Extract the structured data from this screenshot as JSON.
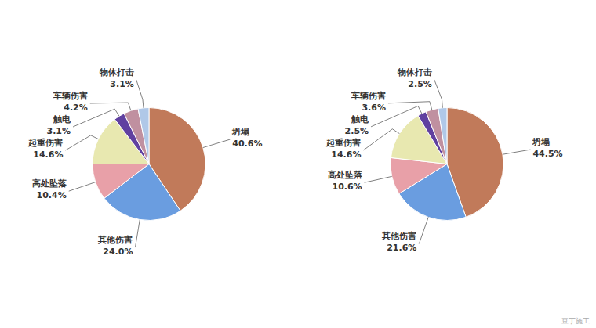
{
  "chart_data": [
    {
      "type": "pie",
      "categories": [
        "坍塌",
        "其他伤害",
        "高处坠落",
        "起重伤害",
        "触电",
        "车辆伤害",
        "物体打击"
      ],
      "values": [
        40.6,
        24.0,
        10.4,
        14.6,
        3.1,
        4.2,
        3.1
      ],
      "value_labels": [
        "40.6%",
        "24.0%",
        "10.4%",
        "14.6%",
        "3.1%",
        "4.2%",
        "3.1%"
      ],
      "colors": [
        "#c17a5a",
        "#6a9de0",
        "#e8a0a8",
        "#e8e8b0",
        "#6040a0",
        "#c090a0",
        "#b0c8e8"
      ],
      "data_labels": true
    },
    {
      "type": "pie",
      "categories": [
        "坍塌",
        "其他伤害",
        "高处坠落",
        "起重伤害",
        "触电",
        "车辆伤害",
        "物体打击"
      ],
      "values": [
        44.5,
        21.6,
        10.6,
        14.6,
        2.5,
        3.6,
        2.5
      ],
      "value_labels": [
        "44.5%",
        "21.6%",
        "10.6%",
        "14.6%",
        "2.5%",
        "3.6%",
        "2.5%"
      ],
      "colors": [
        "#c17a5a",
        "#6a9de0",
        "#e8a0a8",
        "#e8e8b0",
        "#6040a0",
        "#c090a0",
        "#b0c8e8"
      ],
      "data_labels": true,
      "annotations": [
        "豆丁施工"
      ]
    }
  ]
}
